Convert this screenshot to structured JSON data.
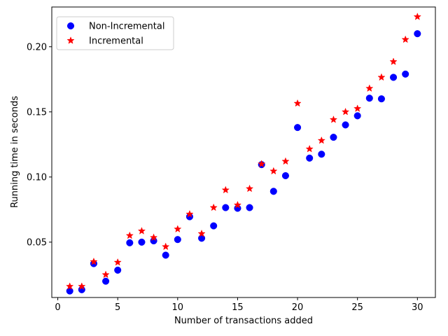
{
  "chart_data": {
    "type": "scatter",
    "title": "",
    "xlabel": "Number of transactions added",
    "ylabel": "Running time in seconds",
    "xlim": [
      -0.5,
      31.5
    ],
    "ylim": [
      0.0075,
      0.2305
    ],
    "xticks": [
      0,
      5,
      10,
      15,
      20,
      25,
      30
    ],
    "xtick_labels": [
      "0",
      "5",
      "10",
      "15",
      "20",
      "25",
      "30"
    ],
    "yticks": [
      0.05,
      0.1,
      0.15,
      0.2
    ],
    "ytick_labels": [
      "0.05",
      "0.10",
      "0.15",
      "0.20"
    ],
    "grid": false,
    "legend": {
      "position": "upper-left",
      "entries": [
        {
          "name": "Non-Incremental",
          "marker": "circle",
          "color": "#0000ff"
        },
        {
          "name": "Incremental",
          "marker": "star",
          "color": "#ff0000"
        }
      ]
    },
    "x": [
      1,
      2,
      3,
      4,
      5,
      6,
      7,
      8,
      9,
      10,
      11,
      12,
      13,
      14,
      15,
      16,
      17,
      18,
      19,
      20,
      21,
      22,
      23,
      24,
      25,
      26,
      27,
      28,
      29,
      30
    ],
    "series": [
      {
        "name": "Non-Incremental",
        "marker": "circle",
        "color": "#0000ff",
        "values": [
          0.0125,
          0.0135,
          0.0335,
          0.02,
          0.0285,
          0.0495,
          0.05,
          0.051,
          0.04,
          0.052,
          0.0695,
          0.053,
          0.0625,
          0.0765,
          0.076,
          0.0765,
          0.1095,
          0.089,
          0.101,
          0.138,
          0.1145,
          0.1175,
          0.1305,
          0.14,
          0.147,
          0.1605,
          0.16,
          0.1765,
          0.179,
          0.21
        ]
      },
      {
        "name": "Incremental",
        "marker": "star",
        "color": "#ff0000",
        "values": [
          0.016,
          0.016,
          0.035,
          0.025,
          0.0345,
          0.055,
          0.0585,
          0.0535,
          0.0465,
          0.06,
          0.0715,
          0.0565,
          0.0765,
          0.09,
          0.0785,
          0.091,
          0.11,
          0.1045,
          0.112,
          0.1565,
          0.1215,
          0.128,
          0.144,
          0.15,
          0.1525,
          0.168,
          0.1765,
          0.1885,
          0.2055,
          0.223
        ]
      }
    ]
  }
}
